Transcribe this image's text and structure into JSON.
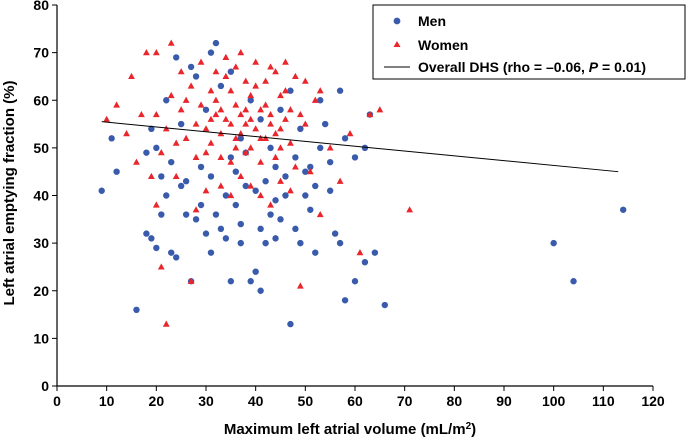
{
  "chart_data": {
    "type": "scatter",
    "xlabel": "Maximum left atrial volume (mL/m",
    "xlabel_sup": "2",
    "xlabel_end": ")",
    "ylabel": "Left atrial emptying fraction (%)",
    "xlim": [
      0,
      120
    ],
    "ylim": [
      0,
      80
    ],
    "x_ticks": [
      "0",
      "10",
      "20",
      "30",
      "40",
      "50",
      "60",
      "70",
      "80",
      "90",
      "100",
      "110",
      "120"
    ],
    "y_ticks": [
      "0",
      "10",
      "20",
      "30",
      "40",
      "50",
      "60",
      "70",
      "80"
    ],
    "grid": false,
    "legend_position": "top-right",
    "series": [
      {
        "name": "Men",
        "marker": "circle",
        "color": "#3a5bab",
        "points": [
          [
            9,
            41
          ],
          [
            11,
            52
          ],
          [
            12,
            45
          ],
          [
            16,
            16
          ],
          [
            18,
            32
          ],
          [
            19,
            31
          ],
          [
            20,
            29
          ],
          [
            21,
            36
          ],
          [
            22,
            40
          ],
          [
            23,
            28
          ],
          [
            24,
            27
          ],
          [
            25,
            42
          ],
          [
            27,
            22
          ],
          [
            28,
            35
          ],
          [
            29,
            46
          ],
          [
            30,
            32
          ],
          [
            31,
            28
          ],
          [
            32,
            72
          ],
          [
            33,
            33
          ],
          [
            34,
            31
          ],
          [
            35,
            22
          ],
          [
            36,
            38
          ],
          [
            37,
            30
          ],
          [
            38,
            42
          ],
          [
            39,
            22
          ],
          [
            40,
            24
          ],
          [
            41,
            20
          ],
          [
            42,
            30
          ],
          [
            43,
            36
          ],
          [
            44,
            46
          ],
          [
            45,
            35
          ],
          [
            46,
            40
          ],
          [
            47,
            13
          ],
          [
            48,
            33
          ],
          [
            50,
            45
          ],
          [
            52,
            28
          ],
          [
            53,
            50
          ],
          [
            55,
            47
          ],
          [
            56,
            32
          ],
          [
            57,
            30
          ],
          [
            58,
            18
          ],
          [
            60,
            22
          ],
          [
            62,
            26
          ],
          [
            63,
            57
          ],
          [
            64,
            28
          ],
          [
            66,
            17
          ],
          [
            100,
            30
          ],
          [
            104,
            22
          ],
          [
            114,
            37
          ],
          [
            22,
            60
          ],
          [
            25,
            55
          ],
          [
            28,
            65
          ],
          [
            30,
            58
          ],
          [
            33,
            63
          ],
          [
            35,
            48
          ],
          [
            37,
            52
          ],
          [
            39,
            60
          ],
          [
            41,
            56
          ],
          [
            43,
            50
          ],
          [
            45,
            58
          ],
          [
            47,
            62
          ],
          [
            49,
            54
          ],
          [
            51,
            46
          ],
          [
            53,
            60
          ],
          [
            20,
            50
          ],
          [
            23,
            47
          ],
          [
            26,
            43
          ],
          [
            29,
            38
          ],
          [
            31,
            44
          ],
          [
            34,
            40
          ],
          [
            36,
            45
          ],
          [
            38,
            49
          ],
          [
            40,
            41
          ],
          [
            42,
            43
          ],
          [
            44,
            39
          ],
          [
            46,
            44
          ],
          [
            48,
            48
          ],
          [
            50,
            40
          ],
          [
            52,
            42
          ],
          [
            55,
            41
          ],
          [
            58,
            52
          ],
          [
            60,
            48
          ],
          [
            62,
            50
          ],
          [
            57,
            62
          ],
          [
            54,
            55
          ],
          [
            24,
            69
          ],
          [
            27,
            67
          ],
          [
            31,
            70
          ],
          [
            35,
            66
          ],
          [
            18,
            49
          ],
          [
            19,
            54
          ],
          [
            21,
            44
          ],
          [
            26,
            36
          ],
          [
            32,
            36
          ],
          [
            37,
            34
          ],
          [
            41,
            33
          ],
          [
            44,
            31
          ],
          [
            49,
            30
          ],
          [
            51,
            37
          ]
        ]
      },
      {
        "name": "Women",
        "marker": "triangle",
        "color": "#e8262b",
        "points": [
          [
            10,
            56
          ],
          [
            12,
            59
          ],
          [
            14,
            53
          ],
          [
            15,
            65
          ],
          [
            16,
            47
          ],
          [
            17,
            57
          ],
          [
            18,
            70
          ],
          [
            19,
            44
          ],
          [
            20,
            70
          ],
          [
            20,
            38
          ],
          [
            21,
            25
          ],
          [
            22,
            13
          ],
          [
            23,
            72
          ],
          [
            24,
            51
          ],
          [
            25,
            66
          ],
          [
            26,
            60
          ],
          [
            27,
            22
          ],
          [
            28,
            55
          ],
          [
            29,
            68
          ],
          [
            30,
            49
          ],
          [
            31,
            62
          ],
          [
            32,
            57
          ],
          [
            33,
            53
          ],
          [
            34,
            65
          ],
          [
            35,
            47
          ],
          [
            36,
            59
          ],
          [
            37,
            70
          ],
          [
            38,
            55
          ],
          [
            39,
            50
          ],
          [
            40,
            63
          ],
          [
            41,
            58
          ],
          [
            42,
            52
          ],
          [
            43,
            67
          ],
          [
            44,
            48
          ],
          [
            45,
            61
          ],
          [
            46,
            56
          ],
          [
            47,
            51
          ],
          [
            48,
            65
          ],
          [
            49,
            21
          ],
          [
            50,
            55
          ],
          [
            51,
            45
          ],
          [
            52,
            60
          ],
          [
            53,
            36
          ],
          [
            55,
            50
          ],
          [
            57,
            43
          ],
          [
            59,
            53
          ],
          [
            61,
            28
          ],
          [
            63,
            57
          ],
          [
            65,
            58
          ],
          [
            71,
            37
          ],
          [
            30,
            54
          ],
          [
            31,
            51
          ],
          [
            32,
            60
          ],
          [
            33,
            48
          ],
          [
            34,
            56
          ],
          [
            35,
            62
          ],
          [
            36,
            52
          ],
          [
            37,
            57
          ],
          [
            38,
            49
          ],
          [
            39,
            61
          ],
          [
            40,
            54
          ],
          [
            41,
            47
          ],
          [
            42,
            59
          ],
          [
            43,
            55
          ],
          [
            44,
            53
          ],
          [
            45,
            50
          ],
          [
            46,
            62
          ],
          [
            47,
            58
          ],
          [
            48,
            46
          ],
          [
            49,
            57
          ],
          [
            25,
            58
          ],
          [
            26,
            52
          ],
          [
            27,
            63
          ],
          [
            28,
            48
          ],
          [
            29,
            59
          ],
          [
            24,
            44
          ],
          [
            23,
            61
          ],
          [
            22,
            54
          ],
          [
            21,
            49
          ],
          [
            20,
            57
          ],
          [
            32,
            66
          ],
          [
            34,
            69
          ],
          [
            36,
            67
          ],
          [
            38,
            64
          ],
          [
            40,
            68
          ],
          [
            42,
            64
          ],
          [
            44,
            66
          ],
          [
            46,
            68
          ],
          [
            50,
            64
          ],
          [
            53,
            62
          ],
          [
            33,
            42
          ],
          [
            35,
            40
          ],
          [
            37,
            44
          ],
          [
            39,
            42
          ],
          [
            41,
            40
          ],
          [
            43,
            38
          ],
          [
            45,
            43
          ],
          [
            47,
            41
          ],
          [
            30,
            41
          ],
          [
            28,
            37
          ],
          [
            31,
            56
          ],
          [
            33,
            58
          ],
          [
            35,
            55
          ],
          [
            37,
            53
          ],
          [
            39,
            56
          ],
          [
            41,
            52
          ],
          [
            43,
            57
          ],
          [
            45,
            54
          ],
          [
            36,
            50
          ],
          [
            38,
            58
          ]
        ]
      }
    ],
    "trendline": {
      "name": "Overall DHS (rho = –0.06, ",
      "p_symbol": "P",
      "p_value": " = 0.01)",
      "color": "#000000",
      "x": [
        9,
        113
      ],
      "y": [
        55.5,
        45
      ]
    }
  }
}
